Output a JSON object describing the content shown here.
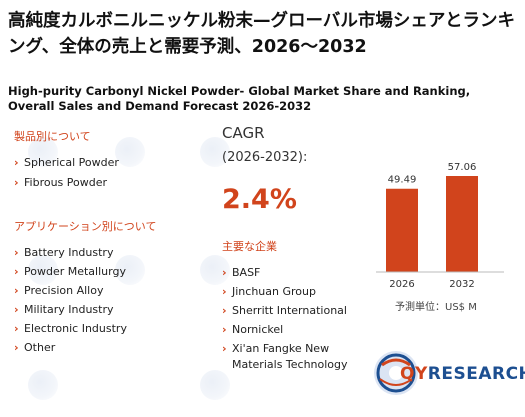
{
  "title_jp": "高純度カルボニルニッケル粉末—グローバル市場シェアとランキング、全体の売上と需要予測、2026～2032",
  "title_en": "High-purity Carbonyl Nickel Powder- Global Market Share and Ranking, Overall Sales and Demand Forecast 2026-2032",
  "product_section": {
    "heading": "製品別について",
    "items": [
      "Spherical Powder",
      "Fibrous Powder"
    ]
  },
  "application_section": {
    "heading": "アプリケーション別について",
    "items": [
      "Battery Industry",
      "Powder Metallurgy",
      "Precision Alloy",
      "Military Industry",
      "Electronic Industry",
      "Other"
    ]
  },
  "cagr": {
    "label": "CAGR",
    "period": "(2026-2032):",
    "value": "2.4%"
  },
  "companies_section": {
    "heading": "主要な企業",
    "items": [
      "BASF",
      "Jinchuan Group",
      "Sherritt International",
      "Nornickel",
      "Xi'an Fangke New",
      "Materials Technology"
    ]
  },
  "chart_data": {
    "type": "bar",
    "categories": [
      "2026",
      "2032"
    ],
    "values": [
      49.49,
      57.06
    ],
    "value_labels": [
      "49.49",
      "57.06"
    ],
    "unit_label": "予測単位：US$ M",
    "color": "#d1441c"
  },
  "logo": {
    "text_q": "QY",
    "text_r": "RESEARCH"
  },
  "colors": {
    "accent": "#d1441c",
    "brand_blue": "#1d4f91"
  }
}
